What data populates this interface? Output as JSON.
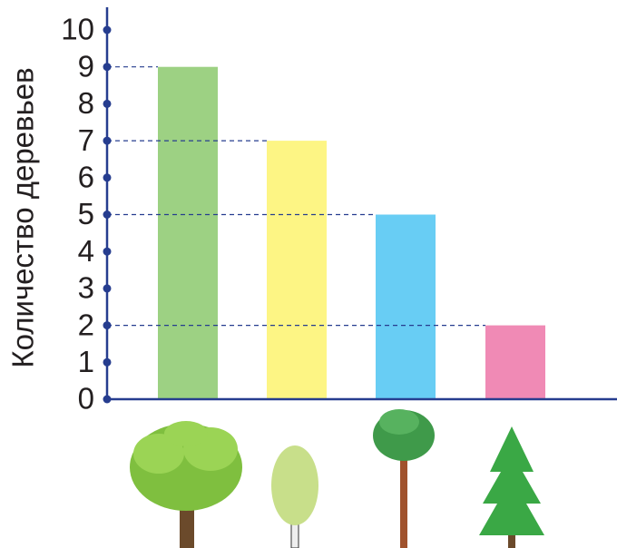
{
  "chart_data": {
    "type": "bar",
    "y_label": "Количество деревьев",
    "categories": [
      null,
      null,
      null,
      null
    ],
    "values": [
      9,
      7,
      5,
      2
    ],
    "colors": [
      "#9dd183",
      "#fdf584",
      "#68cdf4",
      "#f08ab5"
    ],
    "ylim": [
      0,
      10
    ],
    "yticks": [
      0,
      1,
      2,
      3,
      4,
      5,
      6,
      7,
      8,
      9,
      10
    ],
    "axis_color": "#263d8f"
  }
}
